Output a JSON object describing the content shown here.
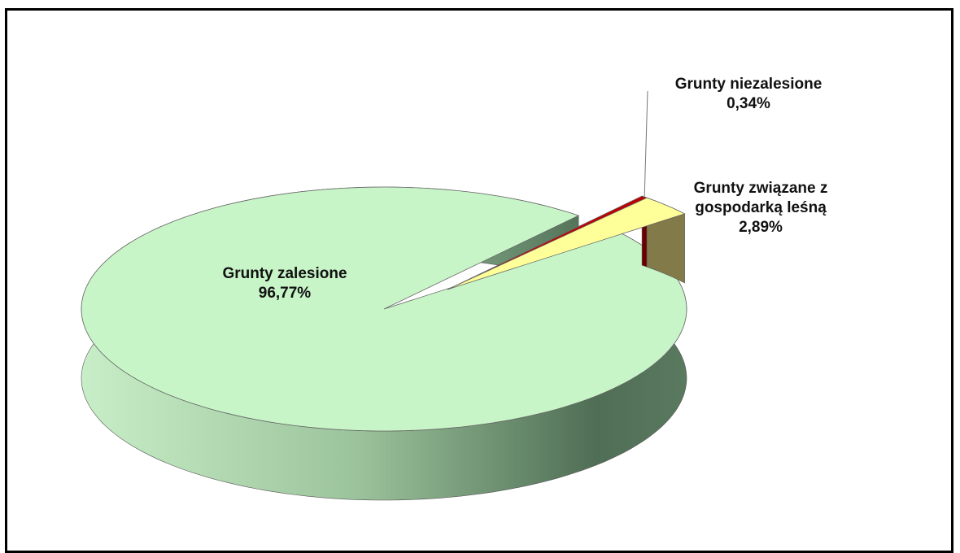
{
  "chart_data": {
    "type": "pie",
    "categories": [
      "Grunty zalesione",
      "Grunty niezalesione",
      "Grunty związane z gospodarką leśną"
    ],
    "values": [
      96.77,
      0.34,
      2.89
    ],
    "value_labels": [
      "96,77%",
      "0,34%",
      "2,89%"
    ],
    "colors": [
      "#c8f5c8",
      "#c00000",
      "#ffff99"
    ]
  }
}
